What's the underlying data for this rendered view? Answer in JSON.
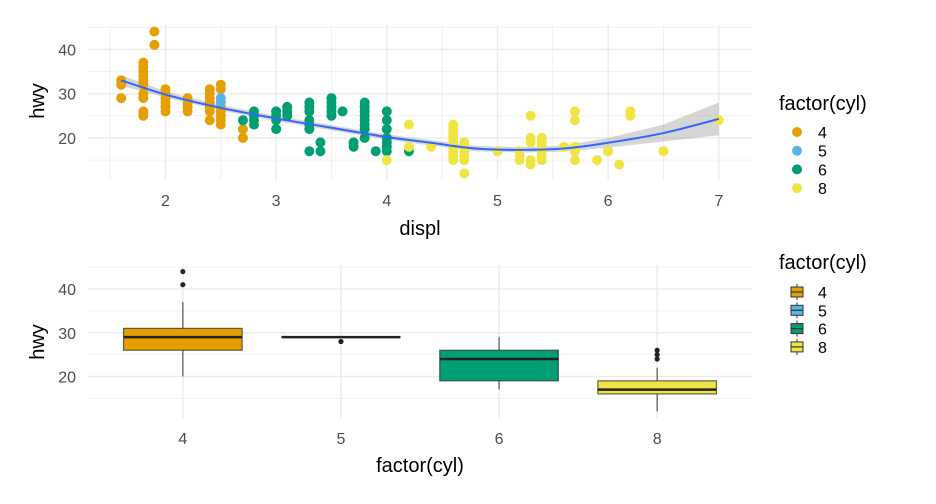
{
  "colors": {
    "4": "#E69F00",
    "5": "#56B4E9",
    "6": "#009E73",
    "8": "#F0E442",
    "smooth": "#3366FF",
    "ci": "#999999",
    "box_line": "#333333"
  },
  "chart_data": [
    {
      "type": "scatter",
      "title": "",
      "xlabel": "displ",
      "ylabel": "hwy",
      "xlim": [
        1.3,
        7.3
      ],
      "ylim": [
        10.5,
        45.5
      ],
      "xticks": [
        2,
        3,
        4,
        5,
        6,
        7
      ],
      "xtick_labels": [
        "2",
        "3",
        "4",
        "5",
        "6",
        "7"
      ],
      "yticks": [
        20,
        30,
        40
      ],
      "ytick_labels": [
        "20",
        "30",
        "40"
      ],
      "grid": true,
      "legend": {
        "title": "factor(cyl)",
        "position": "right",
        "entries": [
          "4",
          "5",
          "6",
          "8"
        ]
      },
      "series": [
        {
          "name": "4",
          "points": [
            [
              1.6,
              29
            ],
            [
              1.6,
              32
            ],
            [
              1.6,
              33
            ],
            [
              1.8,
              25
            ],
            [
              1.8,
              26
            ],
            [
              1.8,
              29
            ],
            [
              1.8,
              30
            ],
            [
              1.8,
              32
            ],
            [
              1.8,
              33
            ],
            [
              1.8,
              34
            ],
            [
              1.8,
              35
            ],
            [
              1.8,
              36
            ],
            [
              1.8,
              37
            ],
            [
              1.9,
              41
            ],
            [
              1.9,
              44
            ],
            [
              2.0,
              26
            ],
            [
              2.0,
              27
            ],
            [
              2.0,
              28
            ],
            [
              2.0,
              29
            ],
            [
              2.0,
              30
            ],
            [
              2.0,
              31
            ],
            [
              2.2,
              26
            ],
            [
              2.2,
              27
            ],
            [
              2.2,
              28
            ],
            [
              2.2,
              29
            ],
            [
              2.4,
              24
            ],
            [
              2.4,
              26
            ],
            [
              2.4,
              27
            ],
            [
              2.4,
              28
            ],
            [
              2.4,
              29
            ],
            [
              2.4,
              30
            ],
            [
              2.4,
              31
            ],
            [
              2.5,
              23
            ],
            [
              2.5,
              24
            ],
            [
              2.5,
              25
            ],
            [
              2.5,
              26
            ],
            [
              2.5,
              27
            ],
            [
              2.5,
              28
            ],
            [
              2.5,
              31
            ],
            [
              2.5,
              32
            ],
            [
              2.7,
              20
            ],
            [
              2.7,
              22
            ]
          ]
        },
        {
          "name": "5",
          "points": [
            [
              2.5,
              28
            ],
            [
              2.5,
              29
            ]
          ]
        },
        {
          "name": "6",
          "points": [
            [
              2.7,
              24
            ],
            [
              2.8,
              23
            ],
            [
              2.8,
              24
            ],
            [
              2.8,
              25
            ],
            [
              2.8,
              26
            ],
            [
              3.0,
              22
            ],
            [
              3.0,
              24
            ],
            [
              3.0,
              25
            ],
            [
              3.0,
              26
            ],
            [
              3.1,
              25
            ],
            [
              3.1,
              26
            ],
            [
              3.1,
              27
            ],
            [
              3.3,
              17
            ],
            [
              3.3,
              22
            ],
            [
              3.3,
              23
            ],
            [
              3.3,
              24
            ],
            [
              3.3,
              26
            ],
            [
              3.3,
              27
            ],
            [
              3.3,
              28
            ],
            [
              3.4,
              17
            ],
            [
              3.4,
              19
            ],
            [
              3.5,
              25
            ],
            [
              3.5,
              26
            ],
            [
              3.5,
              27
            ],
            [
              3.5,
              28
            ],
            [
              3.5,
              29
            ],
            [
              3.6,
              26
            ],
            [
              3.7,
              18
            ],
            [
              3.7,
              19
            ],
            [
              3.8,
              20
            ],
            [
              3.8,
              22
            ],
            [
              3.8,
              23
            ],
            [
              3.8,
              24
            ],
            [
              3.8,
              25
            ],
            [
              3.8,
              26
            ],
            [
              3.8,
              27
            ],
            [
              3.8,
              28
            ],
            [
              3.9,
              17
            ],
            [
              4.0,
              17
            ],
            [
              4.0,
              18
            ],
            [
              4.0,
              19
            ],
            [
              4.0,
              20
            ],
            [
              4.0,
              22
            ],
            [
              4.0,
              24
            ],
            [
              4.0,
              26
            ],
            [
              4.2,
              17
            ]
          ]
        },
        {
          "name": "8",
          "points": [
            [
              4.0,
              15
            ],
            [
              4.2,
              18
            ],
            [
              4.2,
              23
            ],
            [
              4.4,
              18
            ],
            [
              4.6,
              15
            ],
            [
              4.6,
              16
            ],
            [
              4.6,
              17
            ],
            [
              4.6,
              18
            ],
            [
              4.6,
              19
            ],
            [
              4.6,
              20
            ],
            [
              4.6,
              21
            ],
            [
              4.6,
              22
            ],
            [
              4.6,
              23
            ],
            [
              4.7,
              12
            ],
            [
              4.7,
              15
            ],
            [
              4.7,
              16
            ],
            [
              4.7,
              17
            ],
            [
              4.7,
              18
            ],
            [
              4.7,
              19
            ],
            [
              5.0,
              17
            ],
            [
              5.2,
              15
            ],
            [
              5.2,
              16
            ],
            [
              5.2,
              17
            ],
            [
              5.3,
              14
            ],
            [
              5.3,
              15
            ],
            [
              5.3,
              19
            ],
            [
              5.3,
              20
            ],
            [
              5.3,
              25
            ],
            [
              5.4,
              15
            ],
            [
              5.4,
              16
            ],
            [
              5.4,
              17
            ],
            [
              5.4,
              18
            ],
            [
              5.4,
              19
            ],
            [
              5.4,
              20
            ],
            [
              5.6,
              18
            ],
            [
              5.7,
              15
            ],
            [
              5.7,
              17
            ],
            [
              5.7,
              18
            ],
            [
              5.7,
              24
            ],
            [
              5.7,
              26
            ],
            [
              5.9,
              15
            ],
            [
              6.0,
              17
            ],
            [
              6.1,
              14
            ],
            [
              6.2,
              25
            ],
            [
              6.2,
              26
            ],
            [
              6.5,
              17
            ],
            [
              7.0,
              24
            ]
          ]
        }
      ],
      "smooth": {
        "method": "loess",
        "x": [
          1.6,
          2.0,
          2.5,
          3.0,
          3.5,
          4.0,
          4.4,
          4.8,
          5.2,
          5.6,
          6.0,
          6.5,
          7.0
        ],
        "y": [
          33.0,
          29.8,
          26.8,
          24.4,
          22.3,
          20.2,
          18.9,
          17.6,
          17.3,
          17.6,
          18.9,
          21.1,
          24.3
        ],
        "lower": [
          31.8,
          29.1,
          26.2,
          23.8,
          21.7,
          19.6,
          18.3,
          17.0,
          16.7,
          16.9,
          17.8,
          19.2,
          20.6
        ],
        "upper": [
          34.2,
          30.5,
          27.4,
          25.0,
          22.9,
          20.8,
          19.5,
          18.2,
          17.9,
          18.3,
          20.0,
          23.0,
          28.0
        ]
      }
    },
    {
      "type": "box",
      "title": "",
      "xlabel": "factor(cyl)",
      "ylabel": "hwy",
      "ylim": [
        10.5,
        45.5
      ],
      "categories": [
        "4",
        "5",
        "6",
        "8"
      ],
      "yticks": [
        20,
        30,
        40
      ],
      "ytick_labels": [
        "20",
        "30",
        "40"
      ],
      "grid": true,
      "legend": {
        "title": "factor(cyl)",
        "position": "right",
        "entries": [
          "4",
          "5",
          "6",
          "8"
        ]
      },
      "boxes": [
        {
          "category": "4",
          "whisker_low": 20,
          "q1": 26,
          "median": 29,
          "q3": 31,
          "whisker_high": 37,
          "outliers": [
            41,
            44
          ]
        },
        {
          "category": "5",
          "whisker_low": 29,
          "q1": 29,
          "median": 29,
          "q3": 29,
          "whisker_high": 29,
          "outliers": [
            28
          ]
        },
        {
          "category": "6",
          "whisker_low": 17,
          "q1": 19,
          "median": 24,
          "q3": 26,
          "whisker_high": 29,
          "outliers": []
        },
        {
          "category": "8",
          "whisker_low": 12,
          "q1": 16,
          "median": 17,
          "q3": 19,
          "whisker_high": 22,
          "outliers": [
            24,
            25,
            26
          ]
        }
      ]
    }
  ]
}
